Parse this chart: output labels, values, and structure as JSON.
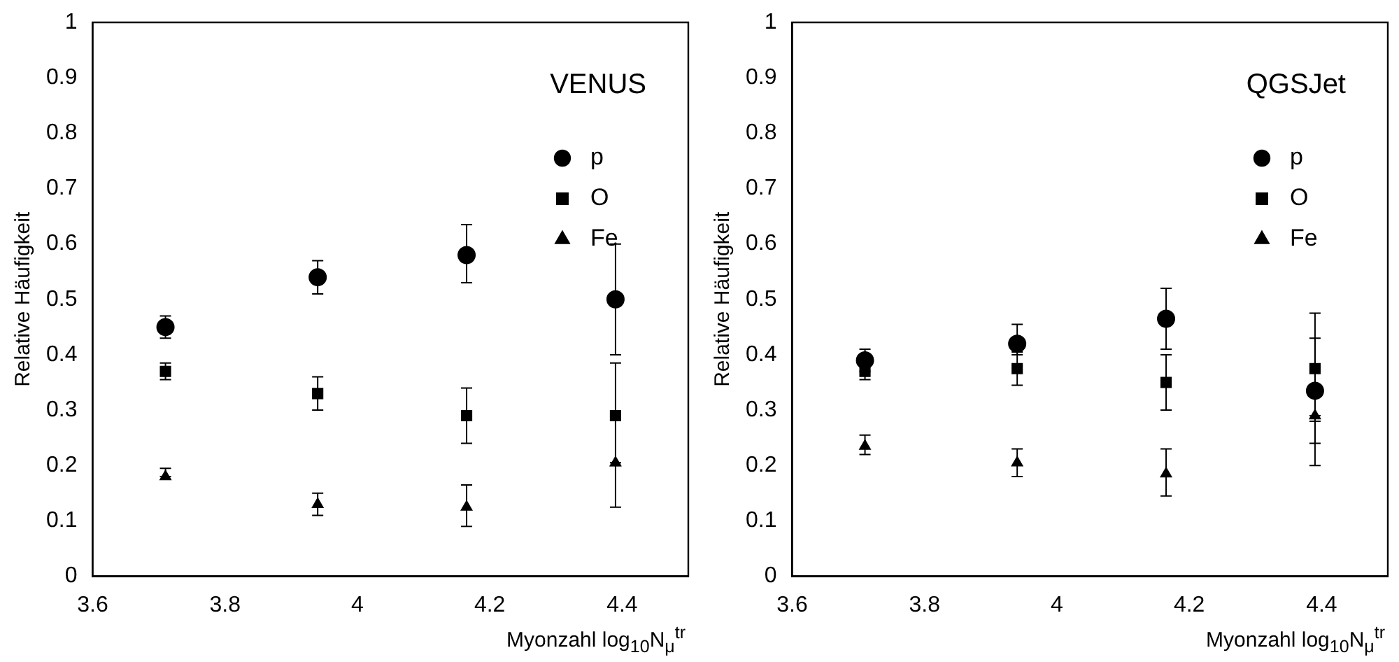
{
  "chart_data": [
    {
      "type": "scatter",
      "title": "VENUS",
      "xlabel": "Myonzahl log$_{10}$N$_{μ}$$^{tr}$",
      "ylabel": "Relative Häufigkeit",
      "x": [
        3.71,
        3.94,
        4.165,
        4.39
      ],
      "xlim": [
        3.6,
        4.5
      ],
      "xticks": [
        3.6,
        3.8,
        4,
        4.2,
        4.4
      ],
      "ylim": [
        0,
        1
      ],
      "yticks": [
        0,
        0.1,
        0.2,
        0.3,
        0.4,
        0.5,
        0.6,
        0.7,
        0.8,
        0.9,
        1
      ],
      "grid": false,
      "legend": "top right",
      "series": [
        {
          "name": "p",
          "color": "#000000",
          "marker": "circle",
          "values": [
            0.45,
            0.54,
            0.58,
            0.5
          ],
          "errors": [
            [
              0.43,
              0.47
            ],
            [
              0.51,
              0.57
            ],
            [
              0.53,
              0.635
            ],
            [
              0.4,
              0.6
            ]
          ]
        },
        {
          "name": "O",
          "color": "#000000",
          "marker": "square",
          "values": [
            0.37,
            0.33,
            0.29,
            0.29
          ],
          "errors": [
            [
              0.355,
              0.385
            ],
            [
              0.3,
              0.36
            ],
            [
              0.24,
              0.34
            ],
            [
              0.2,
              0.385
            ]
          ]
        },
        {
          "name": "Fe",
          "color": "#000000",
          "marker": "triangle",
          "values": [
            0.18,
            0.13,
            0.125,
            0.205
          ],
          "errors": [
            [
              0.18,
              0.195
            ],
            [
              0.11,
              0.15
            ],
            [
              0.09,
              0.165
            ],
            [
              0.125,
              0.205
            ]
          ]
        }
      ]
    },
    {
      "type": "scatter",
      "title": "QGSJet",
      "xlabel": "Myonzahl log$_{10}$N$_{μ}$$^{tr}$",
      "ylabel": "Relative Häufigkeit",
      "x": [
        3.71,
        3.94,
        4.165,
        4.39
      ],
      "xlim": [
        3.6,
        4.5
      ],
      "xticks": [
        3.6,
        3.8,
        4,
        4.2,
        4.4
      ],
      "ylim": [
        0,
        1
      ],
      "yticks": [
        0,
        0.1,
        0.2,
        0.3,
        0.4,
        0.5,
        0.6,
        0.7,
        0.8,
        0.9,
        1
      ],
      "grid": false,
      "legend": "top right",
      "series": [
        {
          "name": "p",
          "color": "#000000",
          "marker": "circle",
          "values": [
            0.39,
            0.42,
            0.465,
            0.335
          ],
          "errors": [
            [
              0.39,
              0.41
            ],
            [
              0.4,
              0.455
            ],
            [
              0.41,
              0.52
            ],
            [
              0.24,
              0.43
            ]
          ]
        },
        {
          "name": "O",
          "color": "#000000",
          "marker": "square",
          "values": [
            0.37,
            0.375,
            0.35,
            0.375
          ],
          "errors": [
            [
              0.355,
              0.37
            ],
            [
              0.345,
              0.405
            ],
            [
              0.3,
              0.4
            ],
            [
              0.28,
              0.475
            ]
          ]
        },
        {
          "name": "Fe",
          "color": "#000000",
          "marker": "triangle",
          "values": [
            0.235,
            0.205,
            0.185,
            0.29
          ],
          "errors": [
            [
              0.22,
              0.255
            ],
            [
              0.18,
              0.23
            ],
            [
              0.145,
              0.23
            ],
            [
              0.2,
              0.29
            ]
          ]
        }
      ]
    }
  ]
}
